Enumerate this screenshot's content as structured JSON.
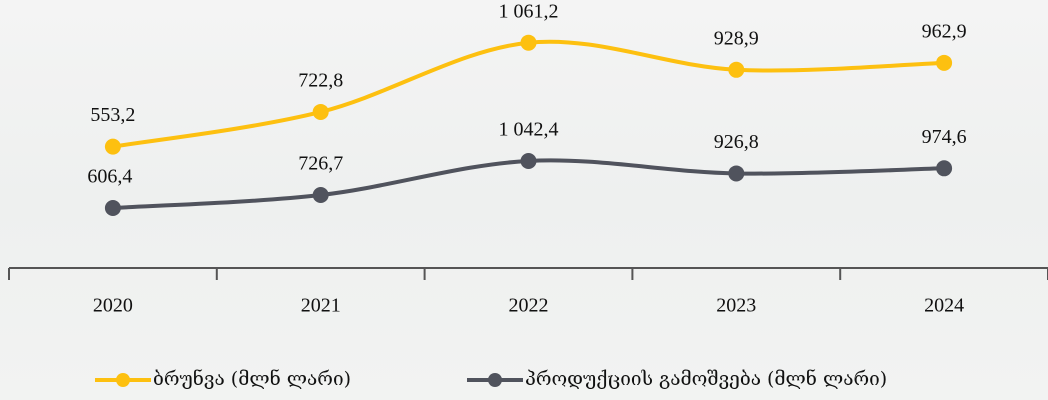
{
  "chart_data": {
    "type": "line",
    "categories": [
      "2020",
      "2021",
      "2022",
      "2023",
      "2024"
    ],
    "series": [
      {
        "name": "ბრუნვა (მლნ ლარი)",
        "color": "#fdc010",
        "values": [
          553.2,
          722.8,
          1061.2,
          928.9,
          962.9
        ],
        "value_labels": [
          "553,2",
          "722,8",
          "1 061,2",
          "928,9",
          "962,9"
        ]
      },
      {
        "name": "პროდუქციის გამოშვება (მლნ ლარი)",
        "color": "#50535d",
        "axis": "y2",
        "values": [
          606.4,
          726.7,
          1042.4,
          926.8,
          974.6
        ],
        "value_labels": [
          "606,4",
          "726,7",
          "1 042,4",
          "926,8",
          "974,6"
        ]
      }
    ],
    "ylim": [
      -40,
      1270
    ],
    "y2lim": [
      50,
      2535
    ],
    "legend": "bottom"
  }
}
